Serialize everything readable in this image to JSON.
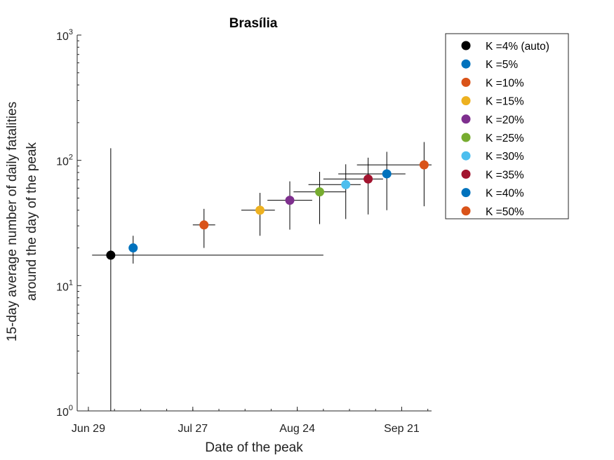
{
  "chart_data": {
    "type": "scatter",
    "title": "Brasília",
    "xlabel": "Date of the peak",
    "ylabel_lines": [
      "15-day average number of daily fatalities",
      "around the day of the peak"
    ],
    "y_scale": "log",
    "ylim": [
      1,
      1000
    ],
    "y_ticks": [
      {
        "value": 1,
        "base": "10",
        "exp": "0"
      },
      {
        "value": 10,
        "base": "10",
        "exp": "1"
      },
      {
        "value": 100,
        "base": "10",
        "exp": "2"
      },
      {
        "value": 1000,
        "base": "10",
        "exp": "3"
      }
    ],
    "xlim": [
      "2020-06-26",
      "2020-09-29"
    ],
    "x_ticks": [
      {
        "date": "2020-06-29",
        "label": "Jun 29"
      },
      {
        "date": "2020-07-27",
        "label": "Jul 27"
      },
      {
        "date": "2020-08-24",
        "label": "Aug 24"
      },
      {
        "date": "2020-09-21",
        "label": "Sep 21"
      }
    ],
    "legend_position": "outside-right",
    "error_bar_color": "#000000",
    "series": [
      {
        "name": "K =4% (auto)",
        "color": "#000000",
        "x": "2020-07-05",
        "y": 17.5,
        "y_err": [
          1,
          125
        ],
        "x_err": [
          "2020-06-30",
          "2020-08-31"
        ]
      },
      {
        "name": "K =5%",
        "color": "#0072BD",
        "x": "2020-07-11",
        "y": 20,
        "y_err": [
          15,
          25
        ],
        "x_err": null
      },
      {
        "name": "K =10%",
        "color": "#D95319",
        "x": "2020-07-30",
        "y": 30.5,
        "y_err": [
          20,
          41
        ],
        "x_err": [
          "2020-07-27",
          "2020-08-02"
        ]
      },
      {
        "name": "K =15%",
        "color": "#EDB120",
        "x": "2020-08-14",
        "y": 40,
        "y_err": [
          25,
          55
        ],
        "x_err": [
          "2020-08-09",
          "2020-08-18"
        ]
      },
      {
        "name": "K =20%",
        "color": "#7E2F8E",
        "x": "2020-08-22",
        "y": 48,
        "y_err": [
          28,
          68
        ],
        "x_err": [
          "2020-08-16",
          "2020-08-28"
        ]
      },
      {
        "name": "K =25%",
        "color": "#77AC30",
        "x": "2020-08-30",
        "y": 56,
        "y_err": [
          31,
          81
        ],
        "x_err": [
          "2020-08-23",
          "2020-09-06"
        ]
      },
      {
        "name": "K =30%",
        "color": "#4DBEEE",
        "x": "2020-09-06",
        "y": 64,
        "y_err": [
          34,
          93
        ],
        "x_err": [
          "2020-08-27",
          "2020-09-10"
        ]
      },
      {
        "name": "K =35%",
        "color": "#A2142F",
        "x": "2020-09-12",
        "y": 71,
        "y_err": [
          37,
          105
        ],
        "x_err": [
          "2020-08-31",
          "2020-09-16"
        ]
      },
      {
        "name": "K =40%",
        "color": "#0072BD",
        "x": "2020-09-17",
        "y": 78,
        "y_err": [
          40,
          117
        ],
        "x_err": [
          "2020-09-04",
          "2020-09-22"
        ]
      },
      {
        "name": "K =50%",
        "color": "#D95319",
        "x": "2020-09-27",
        "y": 92,
        "y_err": [
          43,
          140
        ],
        "x_err": [
          "2020-09-09",
          "2020-10-02"
        ]
      }
    ]
  }
}
